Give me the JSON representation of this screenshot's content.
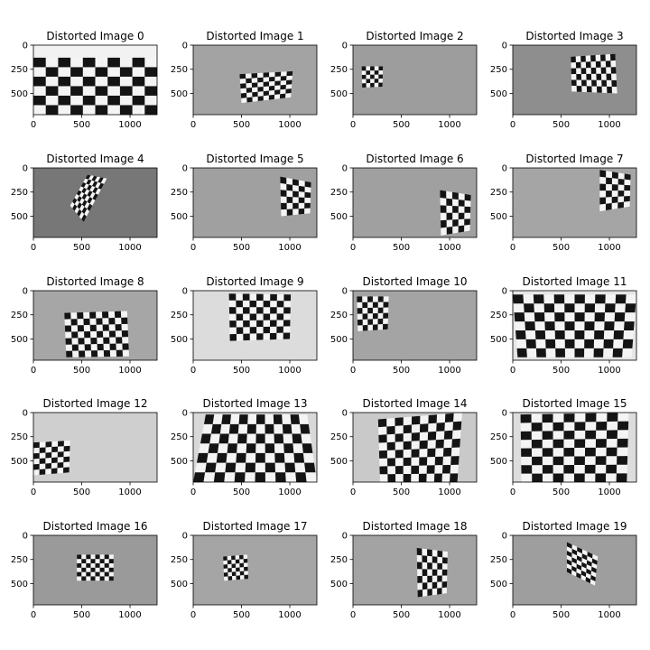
{
  "figure": {
    "background": "#ffffff",
    "axis_color": "#000000"
  },
  "chart_data": [
    {
      "type": "image",
      "title": "Distorted Image 0",
      "xlim": [
        0,
        1280
      ],
      "ylim": [
        720,
        0
      ],
      "xticks": [
        0,
        500,
        1000
      ],
      "yticks": [
        0,
        250,
        500
      ],
      "background": "#f2f2f2",
      "board": {
        "cols": 10,
        "rows": 6,
        "quad": [
          [
            0,
            130
          ],
          [
            1280,
            130
          ],
          [
            1280,
            720
          ],
          [
            0,
            720
          ]
        ]
      }
    },
    {
      "type": "image",
      "title": "Distorted Image 1",
      "xlim": [
        0,
        1280
      ],
      "ylim": [
        720,
        0
      ],
      "xticks": [
        0,
        500,
        1000
      ],
      "yticks": [
        0,
        250,
        500
      ],
      "background": "#a3a3a3",
      "board": {
        "cols": 9,
        "rows": 6,
        "quad": [
          [
            480,
            300
          ],
          [
            1030,
            270
          ],
          [
            1010,
            540
          ],
          [
            500,
            600
          ]
        ]
      }
    },
    {
      "type": "image",
      "title": "Distorted Image 2",
      "xlim": [
        0,
        1280
      ],
      "ylim": [
        720,
        0
      ],
      "xticks": [
        0,
        500,
        1000
      ],
      "yticks": [
        0,
        250,
        500
      ],
      "background": "#9d9d9d",
      "board": {
        "cols": 5,
        "rows": 5,
        "quad": [
          [
            90,
            220
          ],
          [
            310,
            220
          ],
          [
            305,
            430
          ],
          [
            95,
            440
          ]
        ]
      }
    },
    {
      "type": "image",
      "title": "Distorted Image 3",
      "xlim": [
        0,
        1280
      ],
      "ylim": [
        720,
        0
      ],
      "xticks": [
        0,
        500,
        1000
      ],
      "yticks": [
        0,
        250,
        500
      ],
      "background": "#8e8e8e",
      "board": {
        "cols": 9,
        "rows": 6,
        "quad": [
          [
            600,
            120
          ],
          [
            1060,
            90
          ],
          [
            1080,
            500
          ],
          [
            610,
            480
          ]
        ]
      }
    },
    {
      "type": "image",
      "title": "Distorted Image 4",
      "xlim": [
        0,
        1280
      ],
      "ylim": [
        720,
        0
      ],
      "xticks": [
        0,
        500,
        1000
      ],
      "yticks": [
        0,
        250,
        500
      ],
      "background": "#777777",
      "board": {
        "cols": 6,
        "rows": 8,
        "quad": [
          [
            560,
            70
          ],
          [
            760,
            110
          ],
          [
            520,
            560
          ],
          [
            380,
            390
          ]
        ]
      }
    },
    {
      "type": "image",
      "title": "Distorted Image 5",
      "xlim": [
        0,
        1280
      ],
      "ylim": [
        720,
        0
      ],
      "xticks": [
        0,
        500,
        1000
      ],
      "yticks": [
        0,
        250,
        500
      ],
      "background": "#a0a0a0",
      "board": {
        "cols": 5,
        "rows": 6,
        "quad": [
          [
            900,
            90
          ],
          [
            1220,
            150
          ],
          [
            1210,
            470
          ],
          [
            910,
            500
          ]
        ]
      }
    },
    {
      "type": "image",
      "title": "Distorted Image 6",
      "xlim": [
        0,
        1280
      ],
      "ylim": [
        720,
        0
      ],
      "xticks": [
        0,
        500,
        1000
      ],
      "yticks": [
        0,
        250,
        500
      ],
      "background": "#a0a0a0",
      "board": {
        "cols": 5,
        "rows": 6,
        "quad": [
          [
            900,
            230
          ],
          [
            1220,
            280
          ],
          [
            1210,
            650
          ],
          [
            910,
            700
          ]
        ]
      }
    },
    {
      "type": "image",
      "title": "Distorted Image 7",
      "xlim": [
        0,
        1280
      ],
      "ylim": [
        720,
        0
      ],
      "xticks": [
        0,
        500,
        1000
      ],
      "yticks": [
        0,
        250,
        500
      ],
      "background": "#a5a5a5",
      "board": {
        "cols": 5,
        "rows": 6,
        "quad": [
          [
            900,
            20
          ],
          [
            1220,
            70
          ],
          [
            1210,
            400
          ],
          [
            900,
            450
          ]
        ]
      }
    },
    {
      "type": "image",
      "title": "Distorted Image 8",
      "xlim": [
        0,
        1280
      ],
      "ylim": [
        720,
        0
      ],
      "xticks": [
        0,
        500,
        1000
      ],
      "yticks": [
        0,
        250,
        500
      ],
      "background": "#a6a6a6",
      "board": {
        "cols": 10,
        "rows": 7,
        "quad": [
          [
            320,
            230
          ],
          [
            970,
            210
          ],
          [
            990,
            680
          ],
          [
            340,
            690
          ]
        ]
      }
    },
    {
      "type": "image",
      "title": "Distorted Image 9",
      "xlim": [
        0,
        1280
      ],
      "ylim": [
        720,
        0
      ],
      "xticks": [
        0,
        500,
        1000
      ],
      "yticks": [
        0,
        250,
        500
      ],
      "background": "#dcdcdc",
      "board": {
        "cols": 9,
        "rows": 7,
        "quad": [
          [
            370,
            30
          ],
          [
            1010,
            40
          ],
          [
            1000,
            500
          ],
          [
            380,
            520
          ]
        ]
      }
    },
    {
      "type": "image",
      "title": "Distorted Image 10",
      "xlim": [
        0,
        1280
      ],
      "ylim": [
        720,
        0
      ],
      "xticks": [
        0,
        500,
        1000
      ],
      "yticks": [
        0,
        250,
        500
      ],
      "background": "#a4a4a4",
      "board": {
        "cols": 6,
        "rows": 6,
        "quad": [
          [
            40,
            60
          ],
          [
            370,
            60
          ],
          [
            360,
            400
          ],
          [
            50,
            420
          ]
        ]
      }
    },
    {
      "type": "image",
      "title": "Distorted Image 11",
      "xlim": [
        0,
        1280
      ],
      "ylim": [
        720,
        0
      ],
      "xticks": [
        0,
        500,
        1000
      ],
      "yticks": [
        0,
        250,
        500
      ],
      "background": "#e6e6e6",
      "board": {
        "cols": 12,
        "rows": 7,
        "quad": [
          [
            0,
            40
          ],
          [
            1280,
            40
          ],
          [
            1230,
            690
          ],
          [
            50,
            690
          ]
        ]
      }
    },
    {
      "type": "image",
      "title": "Distorted Image 12",
      "xlim": [
        0,
        1280
      ],
      "ylim": [
        720,
        0
      ],
      "xticks": [
        0,
        500,
        1000
      ],
      "yticks": [
        0,
        250,
        500
      ],
      "background": "#cfcfcf",
      "board": {
        "cols": 6,
        "rows": 6,
        "quad": [
          [
            0,
            310
          ],
          [
            380,
            290
          ],
          [
            370,
            620
          ],
          [
            0,
            650
          ]
        ]
      }
    },
    {
      "type": "image",
      "title": "Distorted Image 13",
      "xlim": [
        0,
        1280
      ],
      "ylim": [
        720,
        0
      ],
      "xticks": [
        0,
        500,
        1000
      ],
      "yticks": [
        0,
        250,
        500
      ],
      "background": "#d8d8d8",
      "board": {
        "cols": 12,
        "rows": 7,
        "quad": [
          [
            130,
            20
          ],
          [
            1180,
            20
          ],
          [
            1280,
            720
          ],
          [
            0,
            720
          ]
        ]
      }
    },
    {
      "type": "image",
      "title": "Distorted Image 14",
      "xlim": [
        0,
        1280
      ],
      "ylim": [
        720,
        0
      ],
      "xticks": [
        0,
        500,
        1000
      ],
      "yticks": [
        0,
        250,
        500
      ],
      "background": "#c9c9c9",
      "board": {
        "cols": 10,
        "rows": 8,
        "quad": [
          [
            260,
            70
          ],
          [
            1130,
            0
          ],
          [
            1080,
            720
          ],
          [
            280,
            720
          ]
        ]
      }
    },
    {
      "type": "image",
      "title": "Distorted Image 15",
      "xlim": [
        0,
        1280
      ],
      "ylim": [
        720,
        0
      ],
      "xticks": [
        0,
        500,
        1000
      ],
      "yticks": [
        0,
        250,
        500
      ],
      "background": "#dddddd",
      "board": {
        "cols": 10,
        "rows": 8,
        "quad": [
          [
            80,
            20
          ],
          [
            1200,
            0
          ],
          [
            1180,
            720
          ],
          [
            90,
            720
          ]
        ]
      }
    },
    {
      "type": "image",
      "title": "Distorted Image 16",
      "xlim": [
        0,
        1280
      ],
      "ylim": [
        720,
        0
      ],
      "xticks": [
        0,
        500,
        1000
      ],
      "yticks": [
        0,
        250,
        500
      ],
      "background": "#9a9a9a",
      "board": {
        "cols": 8,
        "rows": 6,
        "quad": [
          [
            450,
            200
          ],
          [
            830,
            200
          ],
          [
            830,
            470
          ],
          [
            450,
            470
          ]
        ]
      }
    },
    {
      "type": "image",
      "title": "Distorted Image 17",
      "xlim": [
        0,
        1280
      ],
      "ylim": [
        720,
        0
      ],
      "xticks": [
        0,
        500,
        1000
      ],
      "yticks": [
        0,
        250,
        500
      ],
      "background": "#a5a5a5",
      "board": {
        "cols": 6,
        "rows": 6,
        "quad": [
          [
            310,
            220
          ],
          [
            560,
            200
          ],
          [
            570,
            450
          ],
          [
            320,
            470
          ]
        ]
      }
    },
    {
      "type": "image",
      "title": "Distorted Image 18",
      "xlim": [
        0,
        1280
      ],
      "ylim": [
        720,
        0
      ],
      "xticks": [
        0,
        500,
        1000
      ],
      "yticks": [
        0,
        250,
        500
      ],
      "background": "#a3a3a3",
      "board": {
        "cols": 6,
        "rows": 7,
        "quad": [
          [
            660,
            130
          ],
          [
            980,
            170
          ],
          [
            970,
            600
          ],
          [
            670,
            640
          ]
        ]
      }
    },
    {
      "type": "image",
      "title": "Distorted Image 19",
      "xlim": [
        0,
        1280
      ],
      "ylim": [
        720,
        0
      ],
      "xticks": [
        0,
        500,
        1000
      ],
      "yticks": [
        0,
        250,
        500
      ],
      "background": "#9e9e9e",
      "board": {
        "cols": 6,
        "rows": 7,
        "quad": [
          [
            560,
            70
          ],
          [
            880,
            220
          ],
          [
            850,
            520
          ],
          [
            560,
            380
          ]
        ]
      }
    }
  ]
}
